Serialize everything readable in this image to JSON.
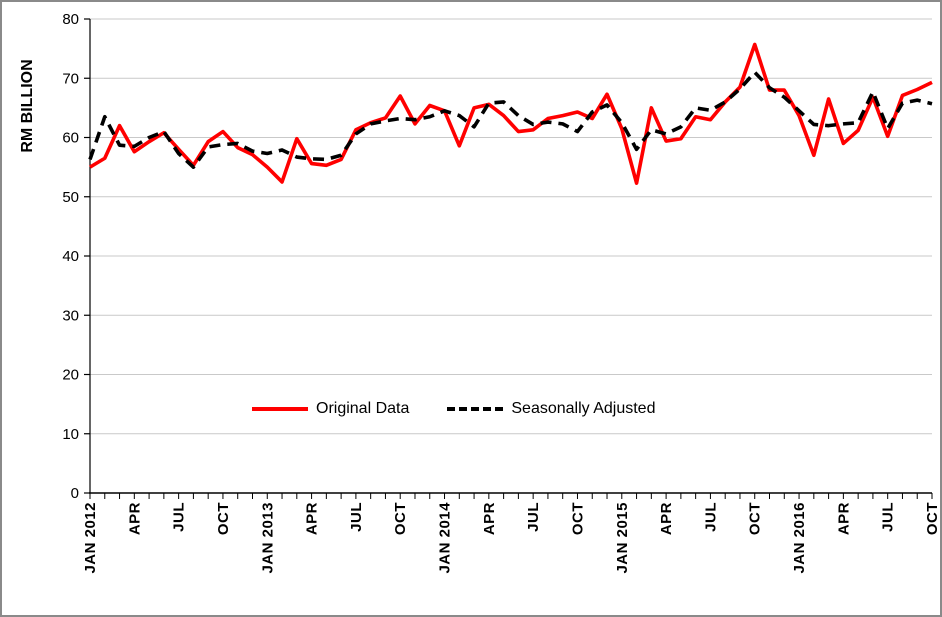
{
  "window": {
    "background": "#ffffff",
    "border_color": "#8a8a8a"
  },
  "chart_data": {
    "type": "line",
    "title": "",
    "xlabel": "",
    "ylabel": "RM BILLION",
    "ylim": [
      0,
      80
    ],
    "ytick_step": 10,
    "grid": true,
    "gridline_color": "#c9c9c9",
    "axis_color": "#000000",
    "legend_position": "inside-bottom-center",
    "months": [
      "JAN 2012",
      "FEB 2012",
      "MAR 2012",
      "APR 2012",
      "MAY 2012",
      "JUN 2012",
      "JUL 2012",
      "AUG 2012",
      "SEP 2012",
      "OCT 2012",
      "NOV 2012",
      "DEC 2012",
      "JAN 2013",
      "FEB 2013",
      "MAR 2013",
      "APR 2013",
      "MAY 2013",
      "JUN 2013",
      "JUL 2013",
      "AUG 2013",
      "SEP 2013",
      "OCT 2013",
      "NOV 2013",
      "DEC 2013",
      "JAN 2014",
      "FEB 2014",
      "MAR 2014",
      "APR 2014",
      "MAY 2014",
      "JUN 2014",
      "JUL 2014",
      "AUG 2014",
      "SEP 2014",
      "OCT 2014",
      "NOV 2014",
      "DEC 2014",
      "JAN 2015",
      "FEB 2015",
      "MAR 2015",
      "APR 2015",
      "MAY 2015",
      "JUN 2015",
      "JUL 2015",
      "AUG 2015",
      "SEP 2015",
      "OCT 2015",
      "NOV 2015",
      "DEC 2015",
      "JAN 2016",
      "FEB 2016",
      "MAR 2016",
      "APR 2016",
      "MAY 2016",
      "JUN 2016",
      "JUL 2016",
      "AUG 2016",
      "SEP 2016",
      "OCT 2016"
    ],
    "x_tick_label_step": 3,
    "x_tick_labels": [
      "JAN 2012",
      "APR",
      "JUL",
      "OCT",
      "JAN 2013",
      "APR",
      "JUL",
      "OCT",
      "JAN 2014",
      "APR",
      "JUL",
      "OCT",
      "JAN 2015",
      "APR",
      "JUL",
      "OCT",
      "JAN 2016",
      "APR",
      "JUL",
      "OCT"
    ],
    "series": [
      {
        "name": "Original Data",
        "color": "#FF0000",
        "style": "solid",
        "values": [
          55.0,
          56.5,
          62.0,
          57.6,
          59.3,
          60.8,
          58.0,
          55.3,
          59.3,
          61.0,
          58.3,
          57.1,
          55.0,
          52.5,
          59.8,
          55.6,
          55.3,
          56.3,
          61.3,
          62.5,
          63.3,
          67.0,
          62.3,
          65.4,
          64.5,
          58.6,
          65.0,
          65.6,
          63.7,
          61.0,
          61.3,
          63.2,
          63.7,
          64.3,
          63.2,
          67.3,
          61.5,
          52.3,
          65.0,
          59.4,
          59.8,
          63.5,
          63.0,
          66.0,
          68.5,
          75.7,
          68.0,
          68.0,
          63.7,
          57.0,
          66.5,
          59.0,
          61.2,
          66.8,
          60.2,
          67.1,
          68.1,
          69.3
        ]
      },
      {
        "name": "Seasonally Adjusted",
        "color": "#000000",
        "style": "dashed",
        "values": [
          56.3,
          63.5,
          58.7,
          58.5,
          60.0,
          61.0,
          57.3,
          55.0,
          58.4,
          58.8,
          59.0,
          57.7,
          57.3,
          57.9,
          56.7,
          56.4,
          56.3,
          57.0,
          60.6,
          62.3,
          62.8,
          63.2,
          63.0,
          63.5,
          64.5,
          63.7,
          61.8,
          65.8,
          66.0,
          63.7,
          62.2,
          62.6,
          62.3,
          61.0,
          64.3,
          65.5,
          62.5,
          58.0,
          61.3,
          60.6,
          61.8,
          65.0,
          64.6,
          66.0,
          68.2,
          71.0,
          68.4,
          66.8,
          64.5,
          62.2,
          62.0,
          62.3,
          62.5,
          67.7,
          61.5,
          65.8,
          66.3,
          65.7
        ]
      }
    ]
  }
}
